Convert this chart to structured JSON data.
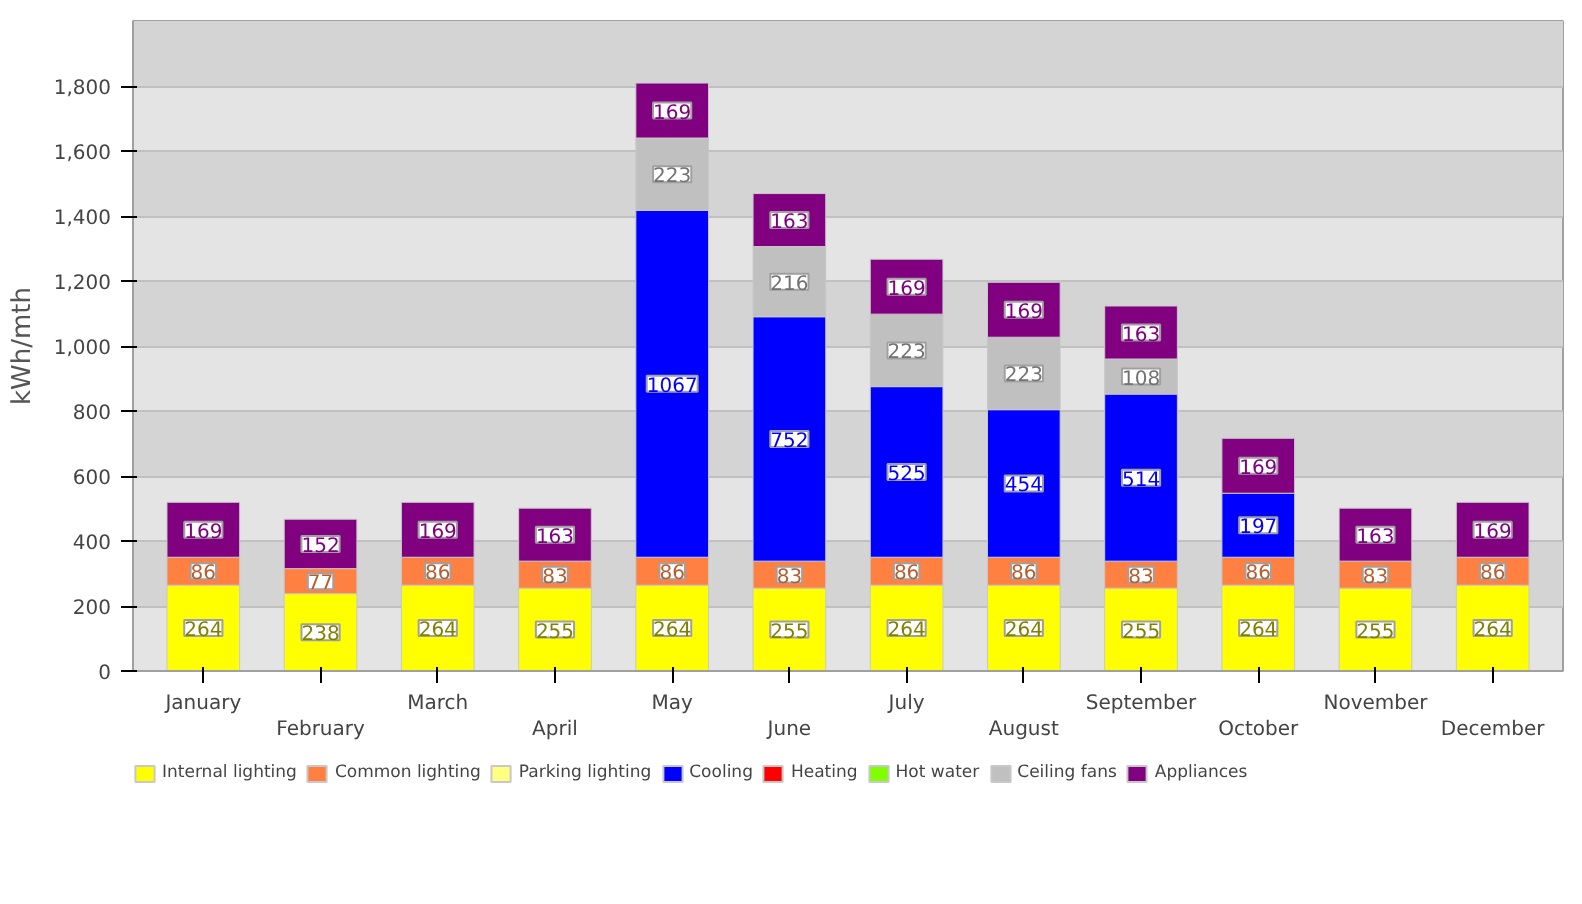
{
  "chart_data": {
    "type": "bar",
    "stacked": true,
    "ylabel": "kWh/mth",
    "categories": [
      "January",
      "February",
      "March",
      "April",
      "May",
      "June",
      "July",
      "August",
      "September",
      "October",
      "November",
      "December"
    ],
    "series": [
      {
        "name": "Internal lighting",
        "color": "#ffff00",
        "values": [
          264,
          238,
          264,
          255,
          264,
          255,
          264,
          264,
          255,
          264,
          255,
          264
        ]
      },
      {
        "name": "Common lighting",
        "color": "#ff8040",
        "values": [
          86,
          77,
          86,
          83,
          86,
          83,
          86,
          86,
          83,
          86,
          83,
          86
        ]
      },
      {
        "name": "Parking lighting",
        "color": "#ffff80",
        "values": [
          null,
          null,
          null,
          null,
          null,
          null,
          null,
          null,
          null,
          null,
          null,
          null
        ]
      },
      {
        "name": "Cooling",
        "color": "#0000ff",
        "values": [
          null,
          null,
          null,
          null,
          1067,
          752,
          525,
          454,
          514,
          197,
          null,
          null
        ]
      },
      {
        "name": "Heating",
        "color": "#ff0000",
        "values": [
          null,
          null,
          null,
          null,
          null,
          null,
          null,
          null,
          null,
          null,
          null,
          null
        ]
      },
      {
        "name": "Hot water",
        "color": "#80ff00",
        "values": [
          null,
          null,
          null,
          null,
          null,
          null,
          null,
          null,
          null,
          null,
          null,
          null
        ]
      },
      {
        "name": "Ceiling fans",
        "color": "#c0c0c0",
        "values": [
          null,
          null,
          null,
          null,
          223,
          216,
          223,
          223,
          108,
          null,
          null,
          null
        ]
      },
      {
        "name": "Appliances",
        "color": "#800080",
        "values": [
          169,
          152,
          169,
          163,
          169,
          163,
          169,
          169,
          163,
          169,
          163,
          169
        ]
      }
    ],
    "ylim": [
      0,
      2000
    ],
    "yticks": [
      0,
      {
        "value": 200,
        "label": "200"
      },
      {
        "value": 400,
        "label": "400"
      },
      {
        "value": 600,
        "label": "600"
      },
      {
        "value": 800,
        "label": "800"
      },
      {
        "value": 1000,
        "label": "1,000"
      },
      {
        "value": 1200,
        "label": "1,200"
      },
      {
        "value": 1400,
        "label": "1,400"
      },
      {
        "value": 1600,
        "label": "1,600"
      },
      {
        "value": 1800,
        "label": "1,800"
      }
    ],
    "grid": "y",
    "legend": "bottom",
    "data_labels": true
  }
}
